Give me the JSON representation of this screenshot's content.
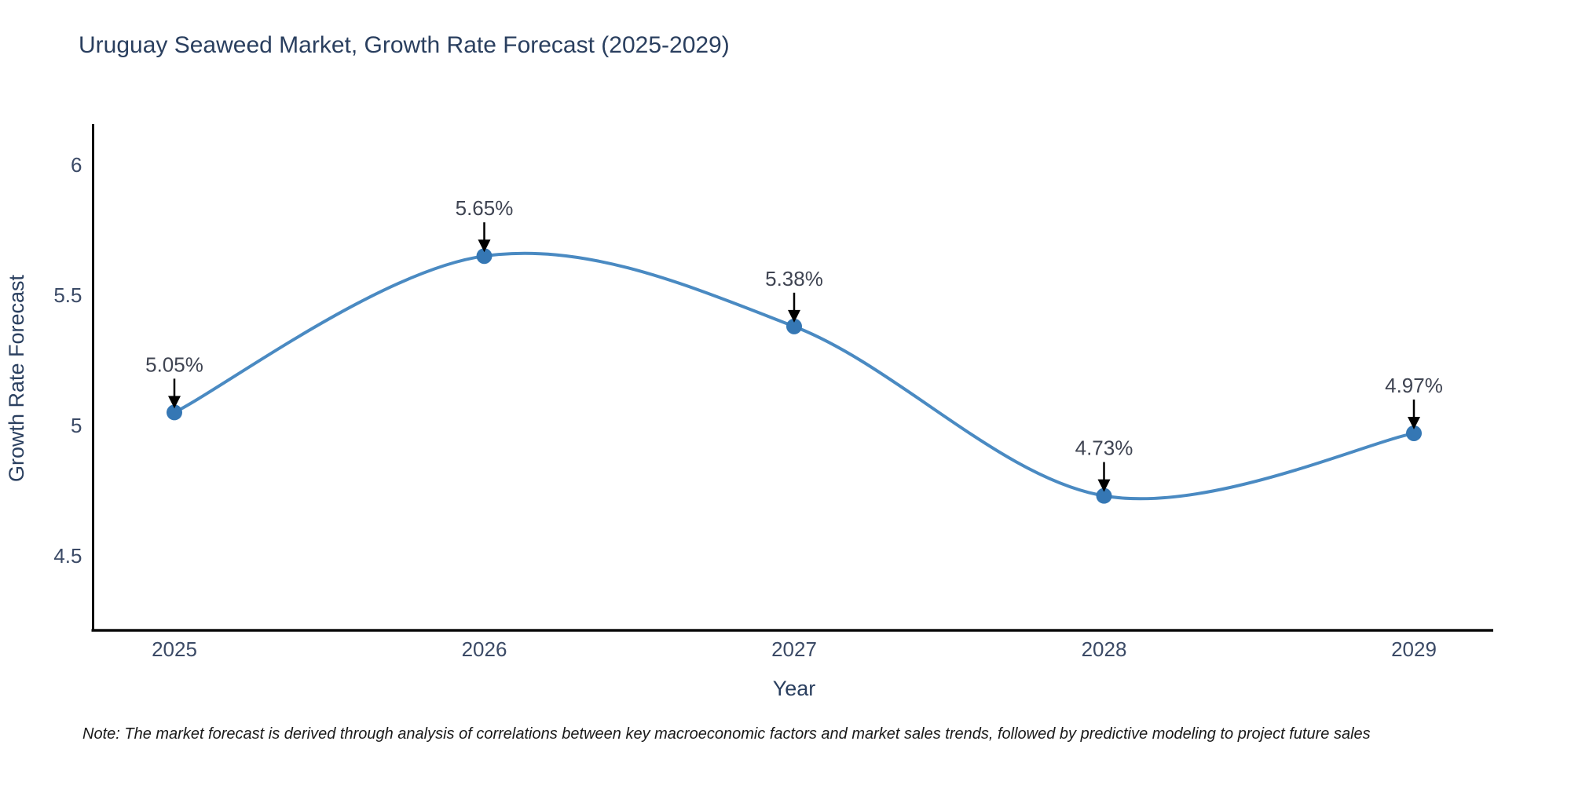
{
  "title": "Uruguay Seaweed Market, Growth Rate Forecast (2025-2029)",
  "note": "Note: The market forecast is derived through analysis of correlations between key macroeconomic factors and market sales trends, followed by predictive modeling to project future sales",
  "chart_data": {
    "type": "line",
    "title": "Uruguay Seaweed Market, Growth Rate Forecast (2025-2029)",
    "x": [
      2025,
      2026,
      2027,
      2028,
      2029
    ],
    "values": [
      5.05,
      5.65,
      5.38,
      4.73,
      4.97
    ],
    "point_labels": [
      "5.05%",
      "5.65%",
      "5.38%",
      "4.73%",
      "4.97%"
    ],
    "xlabel": "Year",
    "ylabel": "Growth Rate Forecast",
    "yticks": [
      "4.5",
      "5",
      "5.5",
      "6"
    ],
    "ytick_values": [
      4.5,
      5,
      5.5,
      6
    ],
    "ylim": [
      4.21,
      6.16
    ],
    "grid": false,
    "legend": "none",
    "smooth": true,
    "line_color": "#4a8ac2",
    "marker_color": "#3577b4",
    "axis_line_color": "#0b0b0b",
    "annotation_arrow_color": "#000000",
    "title_color": "#2a3f5f"
  }
}
